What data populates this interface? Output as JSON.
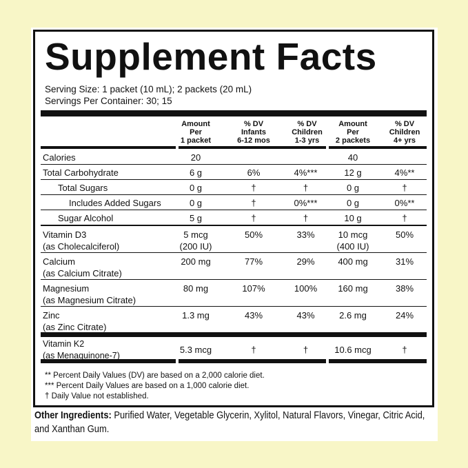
{
  "title": "Supplement Facts",
  "serving_size": "Serving Size: 1 packet (10 mL); 2 packets (20 mL)",
  "servings_per_container": "Servings Per Container: 30; 15",
  "columns": [
    [
      "Amount",
      "Per",
      "1 packet"
    ],
    [
      "% DV",
      "Infants",
      "6-12 mos"
    ],
    [
      "% DV",
      "Children",
      "1-3 yrs"
    ],
    [
      "Amount",
      "Per",
      "2 packets"
    ],
    [
      "% DV",
      "Children",
      "4+ yrs"
    ]
  ],
  "rows": [
    {
      "name": "Calories",
      "name2": "",
      "v": [
        "20",
        "",
        "",
        "40",
        ""
      ]
    },
    {
      "name": "Total Carbohydrate",
      "name2": "",
      "v": [
        "6 g",
        "6%",
        "4%***",
        "12 g",
        "4%**"
      ]
    },
    {
      "name": "Total Sugars",
      "name2": "",
      "v": [
        "0 g",
        "†",
        "†",
        "0 g",
        "†"
      ]
    },
    {
      "name": "Includes Added Sugars",
      "name2": "",
      "v": [
        "0 g",
        "†",
        "0%***",
        "0 g",
        "0%**"
      ]
    },
    {
      "name": "Sugar Alcohol",
      "name2": "",
      "v": [
        "5 g",
        "†",
        "†",
        "10 g",
        "†"
      ]
    },
    {
      "name": "Vitamin D3",
      "name2": "(as Cholecalciferol)",
      "v": [
        "5 mcg",
        "50%",
        "33%",
        "10 mcg",
        "50%"
      ],
      "v2": [
        "(200 IU)",
        "",
        "",
        "(400 IU)",
        ""
      ]
    },
    {
      "name": "Calcium",
      "name2": "(as Calcium Citrate)",
      "v": [
        "200 mg",
        "77%",
        "29%",
        "400 mg",
        "31%"
      ]
    },
    {
      "name": "Magnesium",
      "name2": "(as Magnesium Citrate)",
      "v": [
        "80 mg",
        "107%",
        "100%",
        "160 mg",
        "38%"
      ]
    },
    {
      "name": "Zinc",
      "name2": "(as Zinc Citrate)",
      "v": [
        "1.3 mg",
        "43%",
        "43%",
        "2.6 mg",
        "24%"
      ]
    },
    {
      "name": "Vitamin K2",
      "name2": "(as Menaquinone-7)",
      "v": [
        "5.3 mcg",
        "†",
        "†",
        "10.6 mcg",
        "†"
      ]
    }
  ],
  "footnotes": [
    "** Percent Daily Values (DV) are based on a 2,000 calorie diet.",
    "*** Percent Daily Values are based on a 1,000 calorie diet.",
    "† Daily Value not established."
  ],
  "ingredients": {
    "label": "Other Ingredients:",
    "text": " Purified Water, Vegetable Glycerin, Xylitol, Natural Flavors, Vinegar, Citric Acid, and Xanthan Gum."
  }
}
